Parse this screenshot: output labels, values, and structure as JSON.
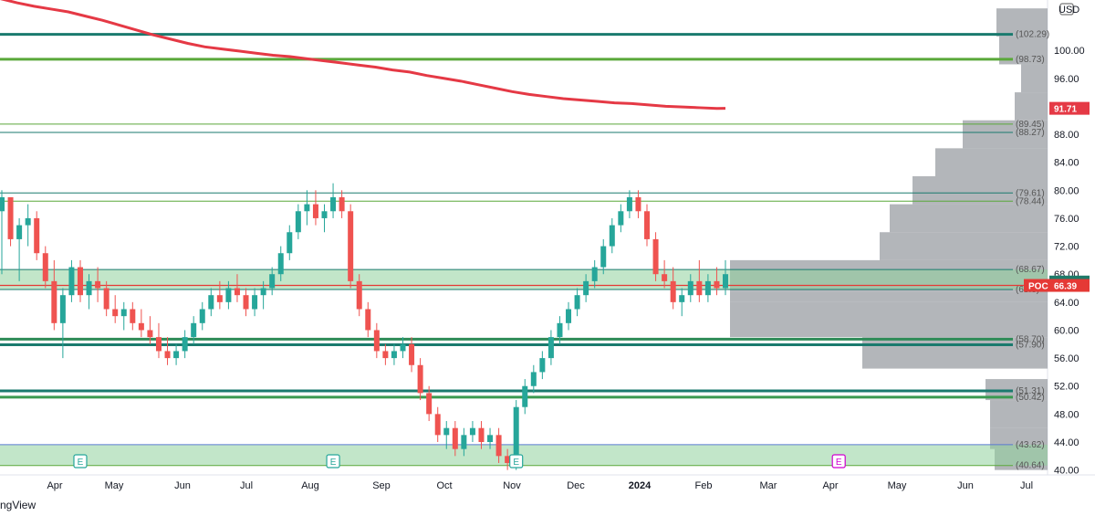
{
  "chart_data": {
    "type": "candlestick",
    "currency": "USD",
    "watermark": "ngView",
    "y_axis": {
      "ylim": [
        39.3,
        107.2
      ],
      "ticks": [
        40.0,
        44.0,
        48.0,
        52.0,
        56.0,
        60.0,
        64.0,
        68.0,
        72.0,
        76.0,
        80.0,
        84.0,
        88.0,
        92.0,
        96.0,
        100.0
      ]
    },
    "x_axis": {
      "labels": [
        "Apr",
        "May",
        "Jun",
        "Jul",
        "Aug",
        "Sep",
        "Oct",
        "Nov",
        "Dec",
        "2024",
        "Feb",
        "Mar",
        "Apr",
        "May",
        "Jun",
        "Jul"
      ]
    },
    "last_price": {
      "value": 66.88,
      "label": "66.88"
    },
    "poc": {
      "label": "POC",
      "value": 66.39,
      "text": "66.39"
    },
    "ma_tag": {
      "value": 91.71,
      "label": "91.71"
    },
    "horizontal_levels": [
      {
        "value": 102.29,
        "label": "(102.29)",
        "color": "#1a7a6e",
        "width": 3
      },
      {
        "value": 98.73,
        "label": "(98.73)",
        "color": "#5aa83a",
        "width": 3
      },
      {
        "value": 89.45,
        "label": "(89.45)",
        "color": "#5aa83a",
        "width": 1
      },
      {
        "value": 88.27,
        "label": "(88.27)",
        "color": "#1a7a6e",
        "width": 1
      },
      {
        "value": 79.61,
        "label": "(79.61)",
        "color": "#1a7a6e",
        "width": 1
      },
      {
        "value": 78.44,
        "label": "(78.44)",
        "color": "#5aa83a",
        "width": 1
      },
      {
        "value": 68.67,
        "label": "(68.67)",
        "color": "#1a7a6e",
        "width": 1
      },
      {
        "value": 65.8,
        "label": "(65.8)",
        "color": "#1a7a6e",
        "width": 1
      },
      {
        "value": 58.7,
        "label": "(58.70)",
        "color": "#2e8b57",
        "width": 3
      },
      {
        "value": 57.9,
        "label": "(57.90)",
        "color": "#1a7a6e",
        "width": 3
      },
      {
        "value": 51.31,
        "label": "(51.31)",
        "color": "#1a7a6e",
        "width": 3
      },
      {
        "value": 50.42,
        "label": "(50.42)",
        "color": "#3a9a50",
        "width": 3
      },
      {
        "value": 43.62,
        "label": "(43.62)",
        "color": "#5a7ad0",
        "width": 1
      },
      {
        "value": 40.64,
        "label": "(40.64)",
        "color": "#5aa83a",
        "width": 1
      }
    ],
    "zones": [
      {
        "from": 65.8,
        "to": 68.67,
        "color": "#8fd29c"
      },
      {
        "from": 40.64,
        "to": 43.62,
        "color": "#8fd29c"
      }
    ],
    "ma_series": [
      [
        0,
        107.4
      ],
      [
        10,
        106.8
      ],
      [
        20,
        106.3
      ],
      [
        30,
        105.9
      ],
      [
        40,
        105.5
      ],
      [
        50,
        104.9
      ],
      [
        60,
        104.3
      ],
      [
        70,
        103.6
      ],
      [
        80,
        102.9
      ],
      [
        90,
        102.2
      ],
      [
        100,
        101.6
      ],
      [
        110,
        101.0
      ],
      [
        120,
        100.5
      ],
      [
        130,
        100.2
      ],
      [
        140,
        99.9
      ],
      [
        150,
        99.6
      ],
      [
        160,
        99.3
      ],
      [
        170,
        99.1
      ],
      [
        180,
        98.8
      ],
      [
        190,
        98.5
      ],
      [
        200,
        98.2
      ],
      [
        210,
        97.9
      ],
      [
        220,
        97.6
      ],
      [
        230,
        97.2
      ],
      [
        240,
        96.9
      ],
      [
        250,
        96.4
      ],
      [
        260,
        96.0
      ],
      [
        270,
        95.6
      ],
      [
        280,
        95.1
      ],
      [
        290,
        94.6
      ],
      [
        300,
        94.1
      ],
      [
        310,
        93.7
      ],
      [
        320,
        93.4
      ],
      [
        330,
        93.1
      ],
      [
        340,
        92.9
      ],
      [
        350,
        92.7
      ],
      [
        360,
        92.5
      ],
      [
        370,
        92.4
      ],
      [
        380,
        92.2
      ],
      [
        390,
        92.0
      ],
      [
        400,
        91.9
      ],
      [
        410,
        91.8
      ],
      [
        420,
        91.7
      ],
      [
        425,
        91.71
      ]
    ],
    "candles": [
      [
        0,
        77,
        80,
        68,
        79
      ],
      [
        1,
        79,
        79,
        72,
        73
      ],
      [
        2,
        73,
        76,
        67,
        75
      ],
      [
        3,
        75,
        78,
        72,
        76
      ],
      [
        4,
        76,
        77,
        70,
        71
      ],
      [
        5,
        71,
        72,
        66,
        67
      ],
      [
        6,
        67,
        70,
        60,
        61
      ],
      [
        7,
        61,
        66,
        56,
        65
      ],
      [
        8,
        65,
        70,
        64,
        69
      ],
      [
        9,
        69,
        70,
        64,
        65
      ],
      [
        10,
        65,
        68,
        63,
        67
      ],
      [
        11,
        67,
        69,
        64,
        66
      ],
      [
        12,
        66,
        67,
        62,
        63
      ],
      [
        13,
        63,
        65,
        61,
        62
      ],
      [
        14,
        62,
        64,
        60,
        63
      ],
      [
        15,
        63,
        64,
        60,
        61
      ],
      [
        16,
        61,
        63,
        59,
        60
      ],
      [
        17,
        60,
        62,
        58,
        59
      ],
      [
        18,
        59,
        61,
        56,
        57
      ],
      [
        19,
        57,
        59,
        55,
        56
      ],
      [
        20,
        56,
        58,
        55,
        57
      ],
      [
        21,
        57,
        60,
        56,
        59
      ],
      [
        22,
        59,
        62,
        58,
        61
      ],
      [
        23,
        61,
        64,
        60,
        63
      ],
      [
        24,
        63,
        66,
        62,
        65
      ],
      [
        25,
        65,
        67,
        63,
        64
      ],
      [
        26,
        64,
        67,
        63,
        66
      ],
      [
        27,
        66,
        68,
        64,
        65
      ],
      [
        28,
        65,
        66,
        62,
        63
      ],
      [
        29,
        63,
        66,
        62,
        65
      ],
      [
        30,
        65,
        67,
        63,
        66
      ],
      [
        31,
        66,
        69,
        65,
        68
      ],
      [
        32,
        68,
        72,
        67,
        71
      ],
      [
        33,
        71,
        75,
        70,
        74
      ],
      [
        34,
        74,
        78,
        73,
        77
      ],
      [
        35,
        77,
        80,
        75,
        78
      ],
      [
        36,
        78,
        80,
        75,
        76
      ],
      [
        37,
        76,
        78,
        74,
        77
      ],
      [
        38,
        77,
        81,
        76,
        79
      ],
      [
        39,
        79,
        80,
        76,
        77
      ],
      [
        40,
        77,
        78,
        66,
        67
      ],
      [
        41,
        67,
        68,
        62,
        63
      ],
      [
        42,
        63,
        64,
        59,
        60
      ],
      [
        43,
        60,
        61,
        56,
        57
      ],
      [
        44,
        57,
        58,
        55,
        56
      ],
      [
        45,
        56,
        58,
        55,
        57
      ],
      [
        46,
        57,
        59,
        56,
        58
      ],
      [
        47,
        58,
        59,
        54,
        55
      ],
      [
        48,
        55,
        56,
        50,
        51
      ],
      [
        49,
        51,
        52,
        47,
        48
      ],
      [
        50,
        48,
        49,
        44,
        45
      ],
      [
        51,
        45,
        47,
        43,
        46
      ],
      [
        52,
        46,
        47,
        42,
        43
      ],
      [
        53,
        43,
        46,
        42,
        45
      ],
      [
        54,
        45,
        47,
        44,
        46
      ],
      [
        55,
        46,
        47,
        43,
        44
      ],
      [
        56,
        44,
        46,
        43,
        45
      ],
      [
        57,
        45,
        46,
        41,
        42
      ],
      [
        58,
        42,
        43,
        40,
        41
      ],
      [
        59,
        41,
        50,
        40,
        49
      ],
      [
        60,
        49,
        53,
        48,
        52
      ],
      [
        61,
        52,
        55,
        51,
        54
      ],
      [
        62,
        54,
        57,
        53,
        56
      ],
      [
        63,
        56,
        60,
        55,
        59
      ],
      [
        64,
        59,
        62,
        58,
        61
      ],
      [
        65,
        61,
        64,
        60,
        63
      ],
      [
        66,
        63,
        66,
        62,
        65
      ],
      [
        67,
        65,
        68,
        64,
        67
      ],
      [
        68,
        67,
        70,
        66,
        69
      ],
      [
        69,
        69,
        73,
        68,
        72
      ],
      [
        70,
        72,
        76,
        71,
        75
      ],
      [
        71,
        75,
        78,
        74,
        77
      ],
      [
        72,
        77,
        80,
        76,
        79
      ],
      [
        73,
        79,
        80,
        76,
        77
      ],
      [
        74,
        77,
        78,
        72,
        73
      ],
      [
        75,
        73,
        74,
        67,
        68
      ],
      [
        76,
        68,
        70,
        66,
        67
      ],
      [
        77,
        67,
        69,
        63,
        64
      ],
      [
        78,
        64,
        66,
        62,
        65
      ],
      [
        79,
        65,
        68,
        64,
        67
      ],
      [
        80,
        67,
        70,
        64,
        65
      ],
      [
        81,
        65,
        68,
        64,
        67
      ],
      [
        82,
        67,
        69,
        65,
        66
      ],
      [
        83,
        66,
        70,
        65,
        68
      ]
    ],
    "earnings_markers": [
      {
        "x_index": 9,
        "label": "E",
        "color": "#26a69a"
      },
      {
        "x_index": 38,
        "label": "E",
        "color": "#26a69a"
      },
      {
        "x_index": 59,
        "label": "E",
        "color": "#26a69a"
      },
      {
        "x_index": 96,
        "label": "E",
        "color": "#d000d0"
      }
    ]
  }
}
